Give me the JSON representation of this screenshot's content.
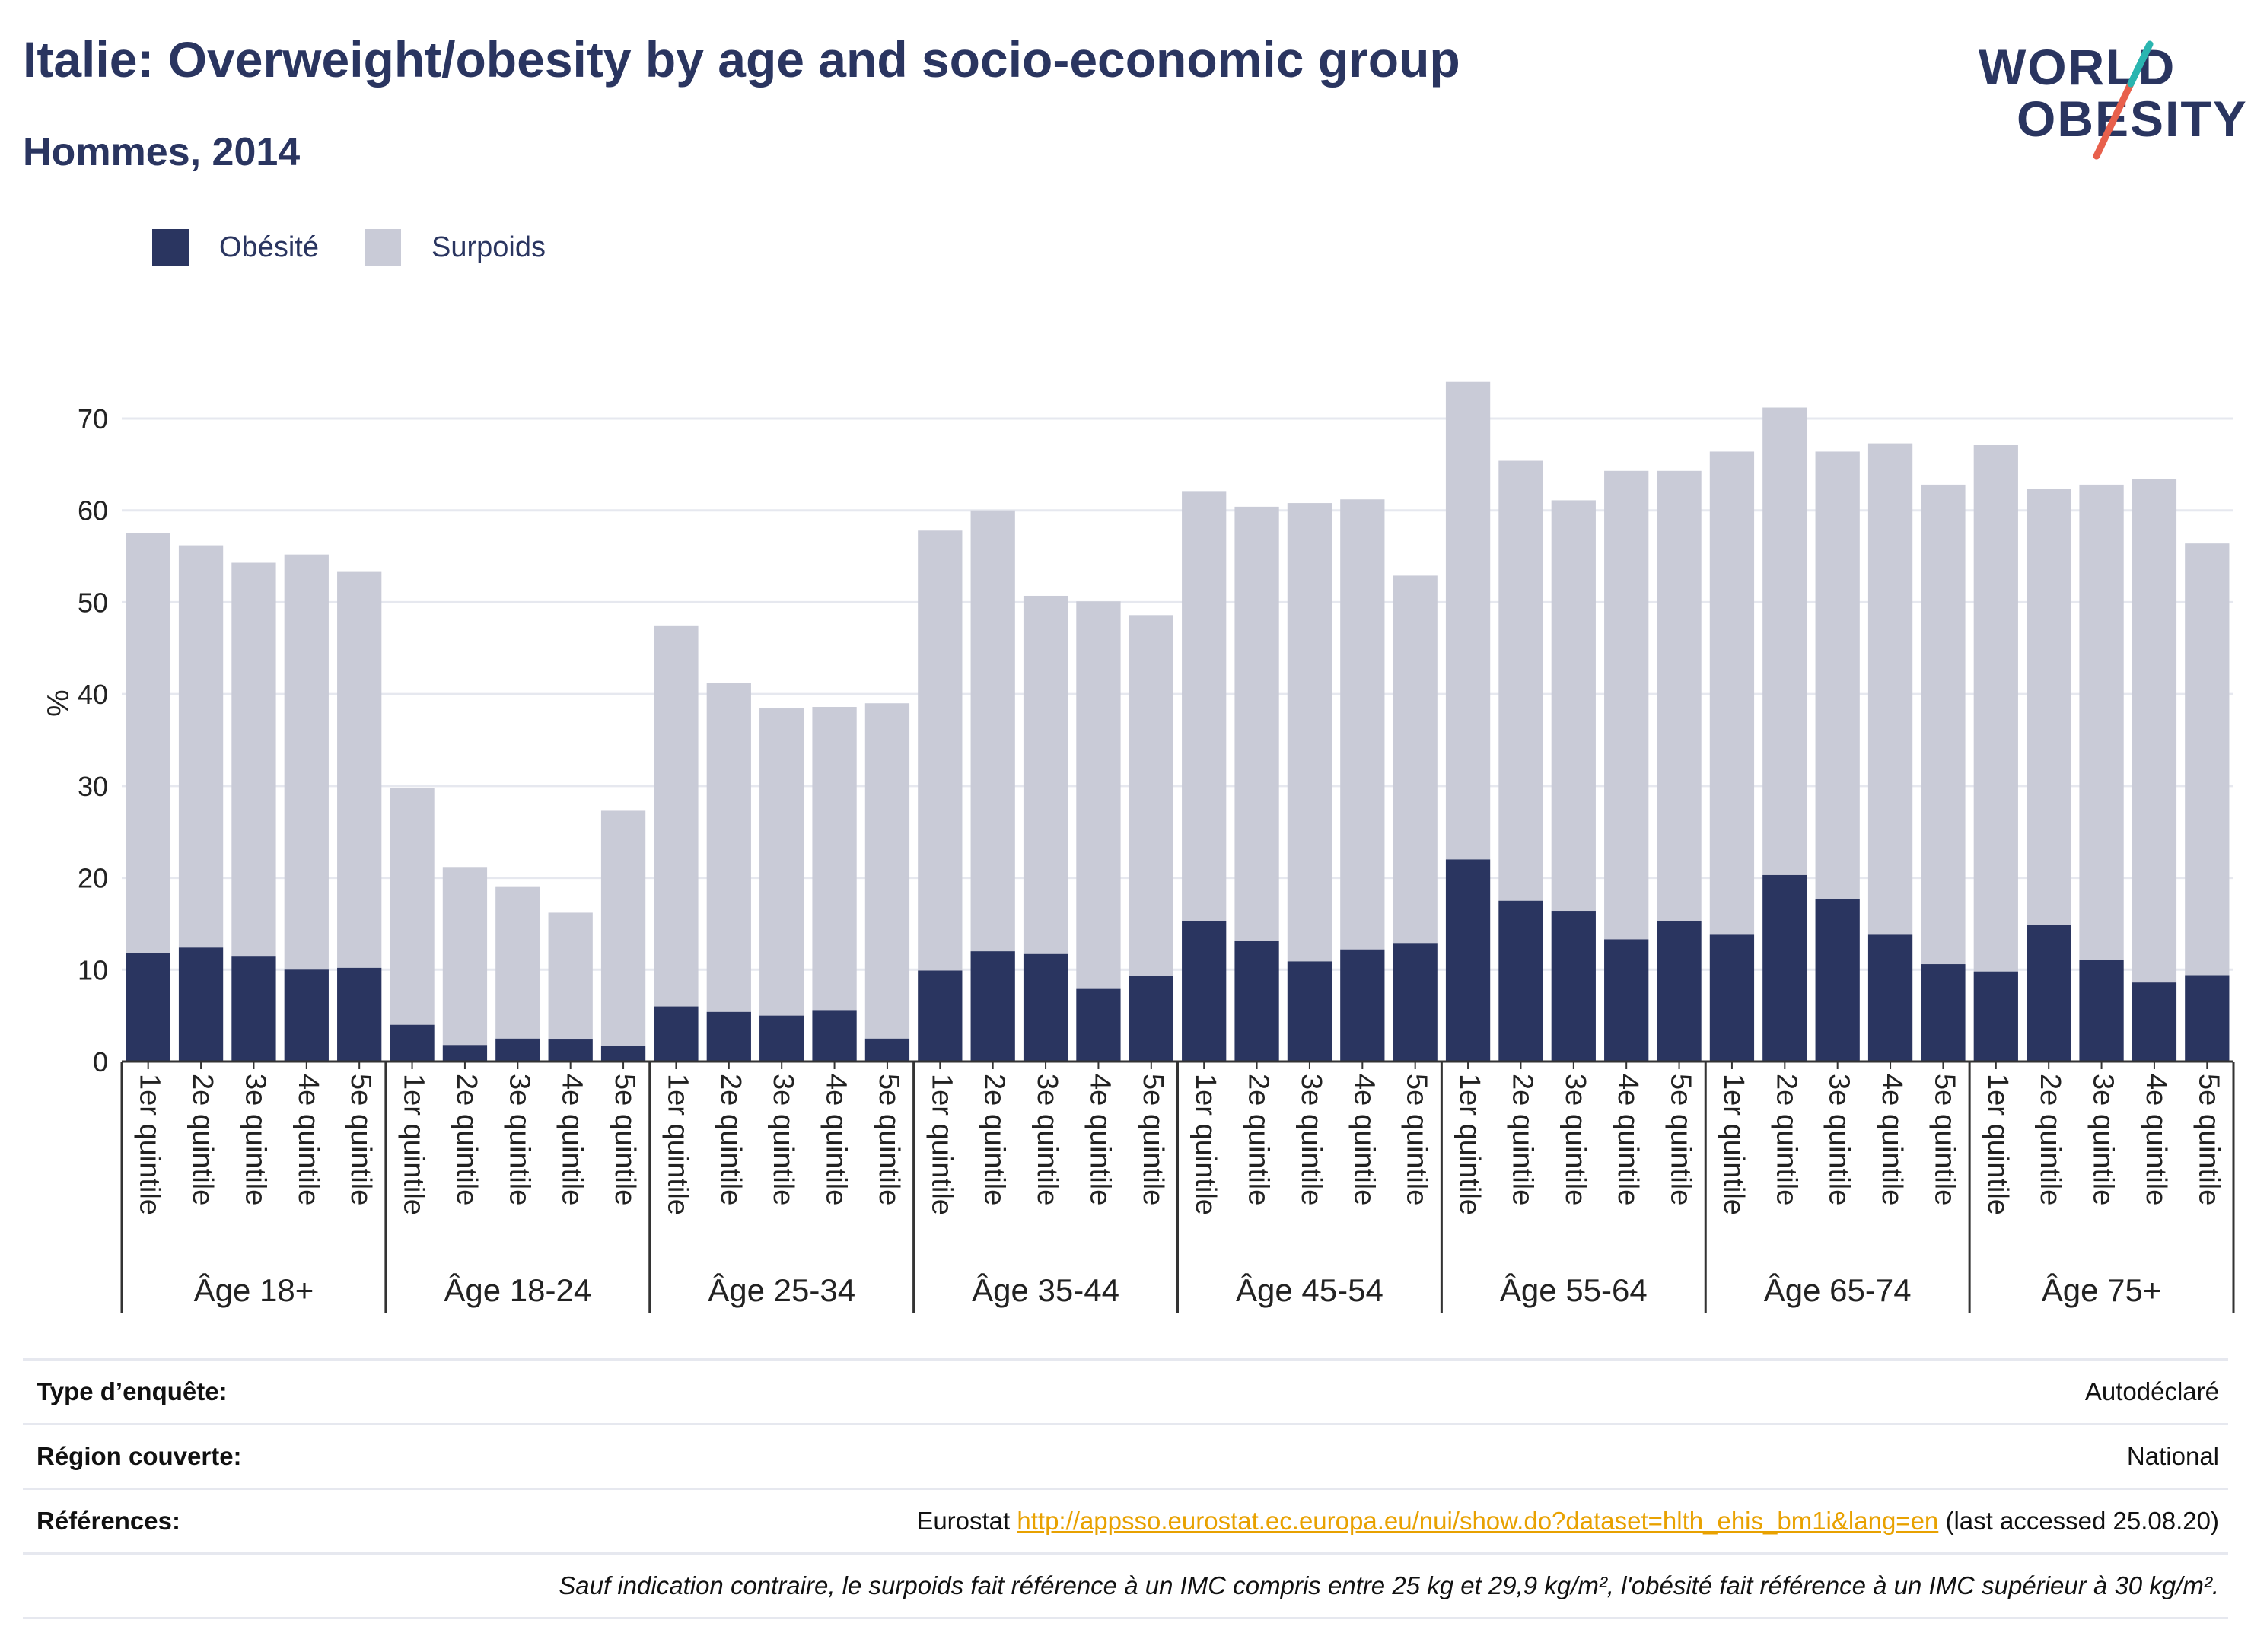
{
  "header": {
    "title": "Italie: Overweight/obesity by age and socio-economic group",
    "subtitle": "Hommes, 2014"
  },
  "logo": {
    "line1": "WORLD",
    "line2": "OBESITY",
    "slash_colors": [
      "#2ab5b0",
      "#e8604c"
    ]
  },
  "legend": {
    "obesity_label": "Obésité",
    "overweight_label": "Surpoids"
  },
  "colors": {
    "obesity": "#2a3560",
    "overweight": "#c9cbd7",
    "grid": "#e6e8ef",
    "axis_text": "#222222"
  },
  "chart_data": {
    "type": "bar",
    "stacked": true,
    "ylabel": "%",
    "xlabel": "",
    "ylim": [
      0,
      78
    ],
    "yticks": [
      0,
      10,
      20,
      30,
      40,
      50,
      60,
      70
    ],
    "grid": true,
    "legend_position": "top-left",
    "subcategories": [
      "1er quintile",
      "2e quintile",
      "3e quintile",
      "4e quintile",
      "5e quintile"
    ],
    "groups": [
      "Âge 18+",
      "Âge 18-24",
      "Âge 25-34",
      "Âge 35-44",
      "Âge 45-54",
      "Âge 55-64",
      "Âge 65-74",
      "Âge 75+"
    ],
    "series": [
      {
        "name": "Obésité",
        "values": [
          11.8,
          12.4,
          11.5,
          10.0,
          10.2,
          4.0,
          1.8,
          2.5,
          2.4,
          1.7,
          6.0,
          5.4,
          5.0,
          5.6,
          2.5,
          9.9,
          12.0,
          11.7,
          7.9,
          9.3,
          15.3,
          13.1,
          10.9,
          12.2,
          12.9,
          22.0,
          17.5,
          16.4,
          13.3,
          15.3,
          13.8,
          20.3,
          17.7,
          13.8,
          10.6,
          9.8,
          14.9,
          11.1,
          8.6,
          9.4
        ]
      },
      {
        "name": "Surpoids",
        "values": [
          45.7,
          43.8,
          42.8,
          45.2,
          43.1,
          25.8,
          19.3,
          16.5,
          13.8,
          25.6,
          41.4,
          35.8,
          33.5,
          33.0,
          36.5,
          47.9,
          48.0,
          39.0,
          42.2,
          39.3,
          46.8,
          47.3,
          49.9,
          49.0,
          40.0,
          52.0,
          47.9,
          44.7,
          51.0,
          49.0,
          52.6,
          50.9,
          48.7,
          53.5,
          52.2,
          57.3,
          47.4,
          51.7,
          54.8,
          47.0
        ]
      }
    ]
  },
  "info": {
    "survey_type_label": "Type d’enquête:",
    "survey_type_value": "Autodéclaré",
    "region_label": "Région couverte:",
    "region_value": "National",
    "references_label": "Références:",
    "references_prefix": "Eurostat",
    "references_link": "http://appsso.eurostat.ec.europa.eu/nui/show.do?dataset=hlth_ehis_bm1i&lang=en",
    "references_suffix": "(last accessed 25.08.20)",
    "note": "Sauf indication contraire, le surpoids fait référence à un IMC compris entre 25 kg et 29,9 kg/m², l'obésité fait référence à un IMC supérieur à 30 kg/m²."
  }
}
